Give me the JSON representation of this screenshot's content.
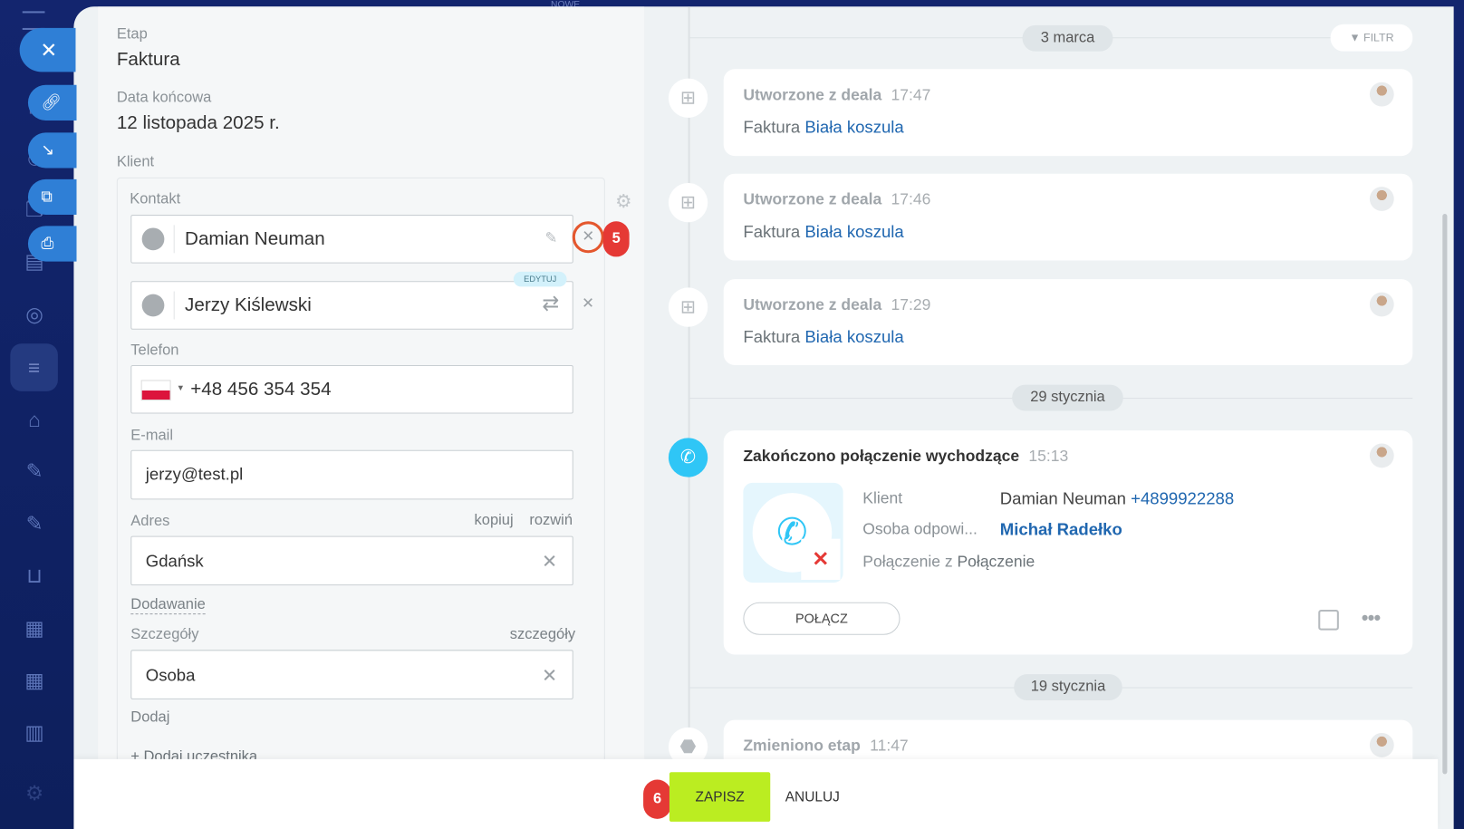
{
  "sidebar": {
    "top_label": "NOWE",
    "quick_actions": [
      "close-icon",
      "link-icon",
      "download-icon",
      "open-external-icon",
      "print-icon"
    ],
    "icons": [
      "home-icon",
      "contacts-icon",
      "copy-icon",
      "id-card-icon",
      "target-icon",
      "filter-funnel-icon",
      "robot-icon",
      "pen-icon",
      "document-icon",
      "cart-icon",
      "store-icon",
      "calendar-icon",
      "chart-icon",
      "settings-icon"
    ]
  },
  "form": {
    "stage_label": "Etap",
    "stage_value": "Faktura",
    "end_date_label": "Data końcowa",
    "end_date_value": "12 listopada 2025 r.",
    "client_label": "Klient",
    "contact_label": "Kontakt",
    "contacts": [
      {
        "name": "Damian Neuman"
      },
      {
        "name": "Jerzy Kiślewski",
        "badge": "EDYTUJ"
      }
    ],
    "phone_label": "Telefon",
    "phone_value": "+48 456 354 354",
    "email_label": "E-mail",
    "email_value": "jerzy@test.pl",
    "address_label": "Adres",
    "address_copy": "kopiuj",
    "address_expand": "rozwiń",
    "address_value": "Gdańsk",
    "add_link": "Dodawanie",
    "details_label": "Szczegóły",
    "details_link": "szczegóły",
    "details_value": "Osoba",
    "add2_link": "Dodaj",
    "add_participant": "+ Dodaj uczestnika"
  },
  "annotations": {
    "step5": "5",
    "step6": "6"
  },
  "timeline": {
    "filter_label": "FILTR",
    "dates": [
      "3 marca",
      "29 stycznia",
      "19 stycznia"
    ],
    "items": [
      {
        "title": "Utworzone z deala",
        "time": "17:47",
        "prefix": "Faktura",
        "link": "Biała koszula"
      },
      {
        "title": "Utworzone z deala",
        "time": "17:46",
        "prefix": "Faktura",
        "link": "Biała koszula"
      },
      {
        "title": "Utworzone z deala",
        "time": "17:29",
        "prefix": "Faktura",
        "link": "Biała koszula"
      }
    ],
    "call": {
      "title": "Zakończono połączenie wychodzące",
      "time": "15:13",
      "client_label": "Klient",
      "client_name": "Damian Neuman",
      "client_phone": "+4899922288",
      "resp_label": "Osoba odpowi...",
      "resp_name": "Michał Radełko",
      "conn_label": "Połączenie z",
      "conn_value": "Połączenie",
      "button": "POŁĄCZ"
    },
    "stage_change": {
      "title": "Zmieniono etap",
      "time": "11:47"
    }
  },
  "footer": {
    "save": "ZAPISZ",
    "cancel": "ANULUJ"
  },
  "colors": {
    "sidebar": "#13256e",
    "accent_blue": "#2f7fd6",
    "save_green": "#bbed21",
    "badge_red": "#e53935",
    "link": "#2067b0"
  }
}
